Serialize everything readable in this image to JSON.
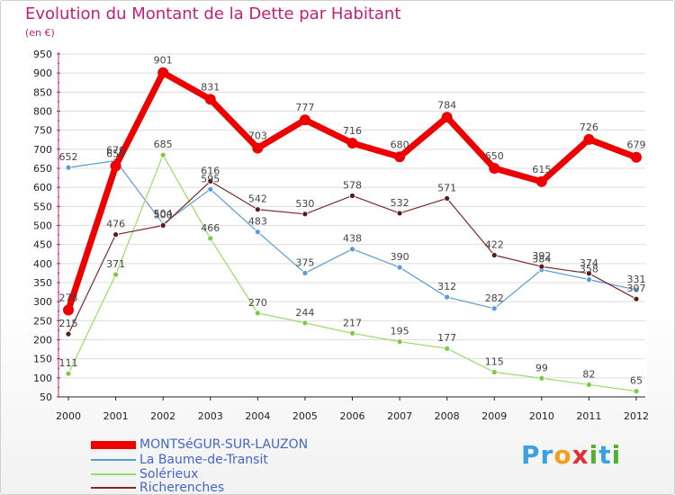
{
  "title": "Evolution du Montant de la Dette par Habitant",
  "subtitle": "(en €)",
  "brand": {
    "letters": [
      {
        "ch": "P",
        "color": "#3aa0e0"
      },
      {
        "ch": "r",
        "color": "#3aa0e0"
      },
      {
        "ch": "o",
        "color": "#f0a020"
      },
      {
        "ch": "x",
        "color": "#e03030"
      },
      {
        "ch": "i",
        "color": "#50b030"
      },
      {
        "ch": "t",
        "color": "#3aa0e0"
      },
      {
        "ch": "i",
        "color": "#50b030"
      }
    ]
  },
  "chart_data": {
    "type": "line",
    "ylim": [
      50,
      950
    ],
    "yticks": [
      50,
      100,
      150,
      200,
      250,
      300,
      350,
      400,
      450,
      500,
      550,
      600,
      650,
      700,
      750,
      800,
      850,
      900,
      950
    ],
    "x": [
      "2000",
      "2001",
      "2002",
      "2003",
      "2004",
      "2005",
      "2006",
      "2007",
      "2008",
      "2009",
      "2010",
      "2011",
      "2012"
    ],
    "grid": true,
    "legend_position": "bottom-left",
    "series": [
      {
        "name": "MONTSéGUR-SUR-LAUZON",
        "color": "#ee0000",
        "marker": "#ee0000",
        "width": 7,
        "radius": 6,
        "values": [
          278,
          656,
          901,
          831,
          703,
          777,
          716,
          680,
          784,
          650,
          615,
          726,
          679
        ],
        "labels": [
          "278",
          "656",
          "901",
          "831",
          "703",
          "777",
          "716",
          "680",
          "784",
          "650",
          "615",
          "726",
          "679"
        ]
      },
      {
        "name": "La Baume-de-Transit",
        "color": "#5b9bd5",
        "marker": "#5b9bd5",
        "width": 1.2,
        "radius": 3,
        "values": [
          652,
          670,
          504,
          595,
          483,
          375,
          438,
          390,
          312,
          282,
          384,
          358,
          331
        ],
        "labels": [
          "652",
          "670",
          "504",
          "595",
          "483",
          "375",
          "438",
          "390",
          "312",
          "282",
          "384",
          "358",
          "331"
        ]
      },
      {
        "name": "Solérieux",
        "color": "#99dd66",
        "marker": "#77cc44",
        "width": 1.2,
        "radius": 3,
        "values": [
          111,
          371,
          685,
          466,
          270,
          244,
          217,
          195,
          177,
          115,
          99,
          82,
          65
        ],
        "labels": [
          "111",
          "371",
          "685",
          "466",
          "270",
          "244",
          "217",
          "195",
          "177",
          "115",
          "99",
          "82",
          "65"
        ]
      },
      {
        "name": "Richerenches",
        "color": "#7a2a2a",
        "marker": "#5a1a1a",
        "width": 1.2,
        "radius": 3,
        "values": [
          215,
          476,
          500,
          616,
          542,
          530,
          578,
          532,
          571,
          422,
          392,
          374,
          307
        ],
        "labels": [
          "215",
          "476",
          "500",
          "616",
          "542",
          "530",
          "578",
          "532",
          "571",
          "422",
          "392",
          "374",
          "307"
        ]
      }
    ]
  }
}
